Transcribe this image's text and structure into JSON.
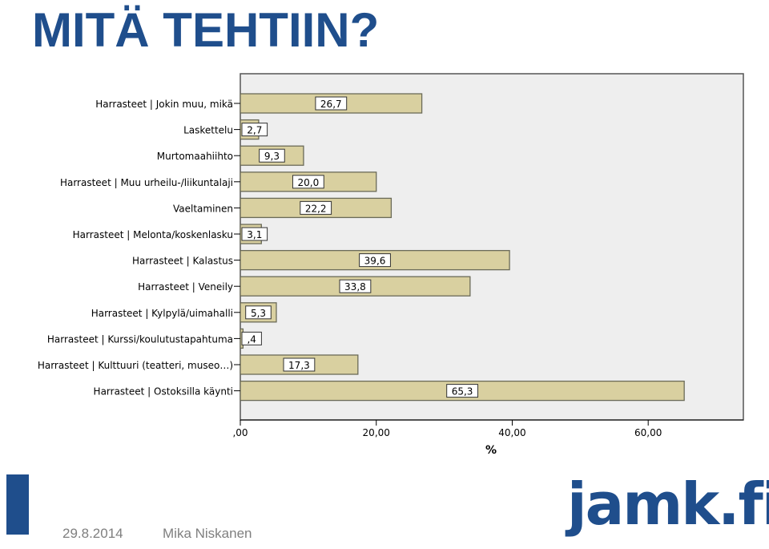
{
  "slide": {
    "title": "MITÄ TEHTIIN?",
    "footer_date": "29.8.2014",
    "footer_author": "Mika Niskanen",
    "logo_text": "jamk.fi"
  },
  "colors": {
    "title": "#1f4e8c",
    "bar_fill": "#d9d0a0",
    "bar_stroke": "#6b6b58",
    "plot_bg": "#eeeeee",
    "accent": "#1f4e8c",
    "footer_text": "#7f7f7f"
  },
  "chart_data": {
    "type": "bar",
    "orientation": "horizontal",
    "categories": [
      "Harrasteet | Jokin muu, mikä",
      "Laskettelu",
      "Murtomaahiihto",
      "Harrasteet | Muu urheilu-/liikuntalaji",
      "Vaeltaminen",
      "Harrasteet | Melonta/koskenlasku",
      "Harrasteet | Kalastus",
      "Harrasteet | Veneily",
      "Harrasteet | Kylpylä/uimahalli",
      "Harrasteet | Kurssi/koulutustapahtuma",
      "Harrasteet | Kulttuuri (teatteri, museo…)",
      "Harrasteet | Ostoksilla käynti"
    ],
    "values": [
      26.7,
      2.7,
      9.3,
      20.0,
      22.2,
      3.1,
      39.6,
      33.8,
      5.3,
      0.4,
      17.3,
      65.3
    ],
    "value_labels": [
      "26,7",
      "2,7",
      "9,3",
      "20,0",
      "22,2",
      "3,1",
      "39,6",
      "33,8",
      "5,3",
      ",4",
      "17,3",
      "65,3"
    ],
    "xlabel": "%",
    "xlim": [
      0,
      74
    ],
    "x_ticks": [
      0,
      20,
      40,
      60
    ],
    "x_tick_labels": [
      ",00",
      "20,00",
      "40,00",
      "60,00"
    ],
    "grid": false,
    "legend": "none"
  }
}
